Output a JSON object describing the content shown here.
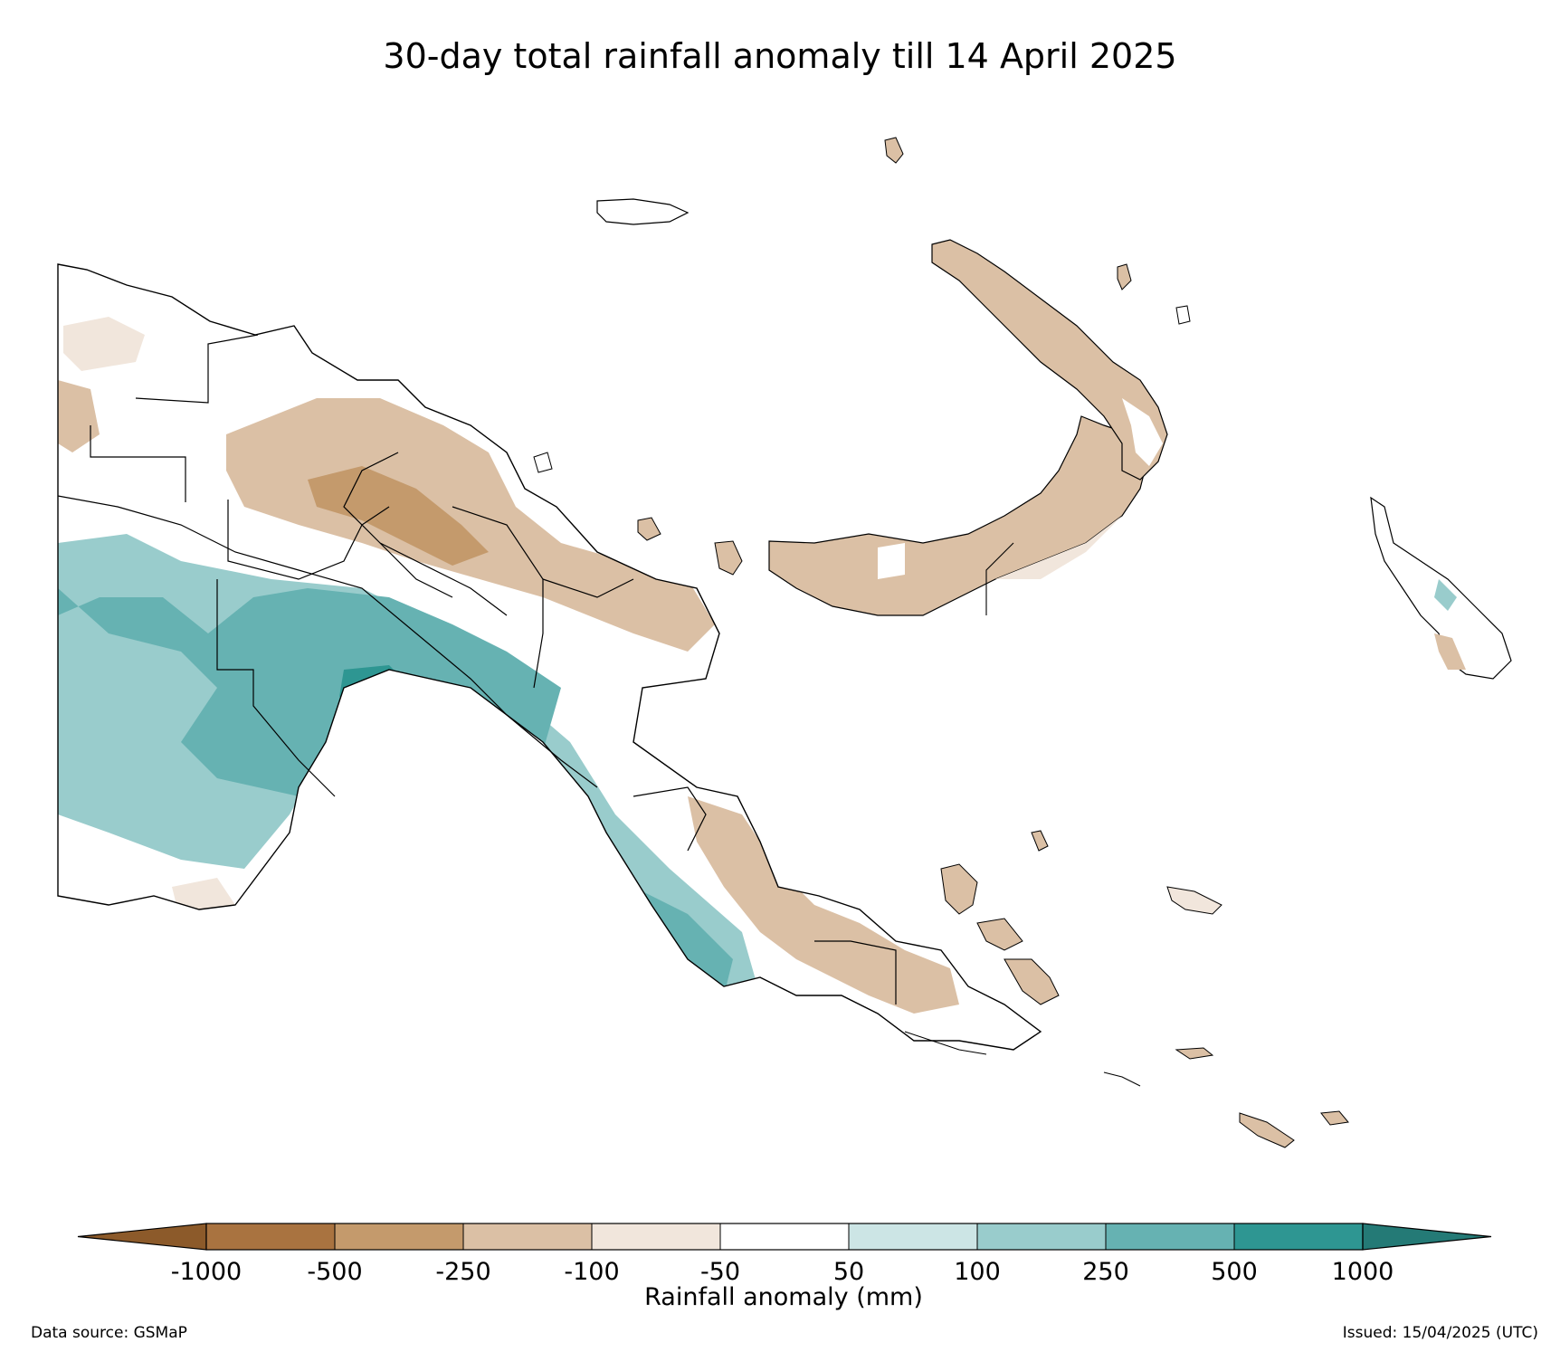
{
  "title": "30-day total rainfall anomaly till 14 April 2025",
  "footer": {
    "data_source": "Data source: GSMaP",
    "issued": "Issued: 15/04/2025 (UTC)"
  },
  "legend": {
    "label": "Rainfall anomaly (mm)",
    "tick_labels": [
      "-1000",
      "-500",
      "-250",
      "-100",
      "-50",
      "50",
      "100",
      "250",
      "500",
      "1000"
    ],
    "extend": "both",
    "colors": {
      "below_min": "#8c5a2a",
      "bins": [
        "#a97340",
        "#c49a6c",
        "#dbc0a5",
        "#f1e6dc",
        "#ffffff",
        "#cce5e5",
        "#99cccc",
        "#66b2b2",
        "#2e9692"
      ],
      "above_max": "#247a76"
    }
  },
  "map": {
    "region_colors": {
      "coast": "#000000",
      "boundary": "#000000"
    }
  }
}
